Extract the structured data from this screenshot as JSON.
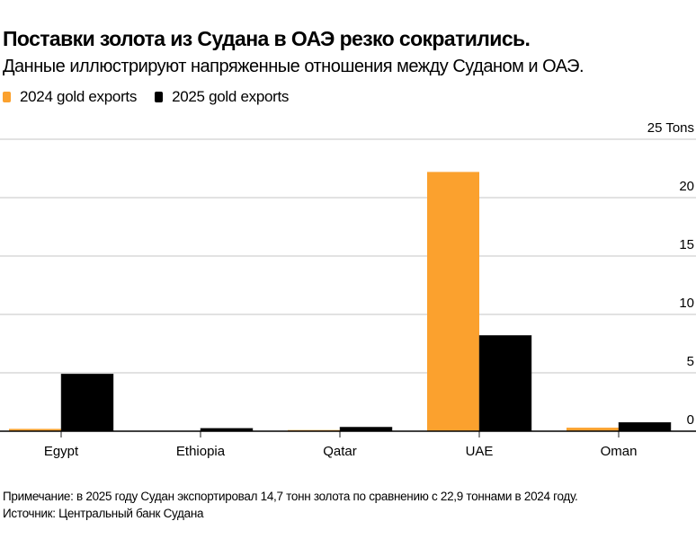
{
  "chart_data": {
    "type": "bar",
    "title": "Поставки золота из Судана в ОАЭ резко сократились.",
    "subtitle": "Данные иллюстрируют напряженные отношения между Суданом и ОАЭ.",
    "categories": [
      "Egypt",
      "Ethiopia",
      "Qatar",
      "UAE",
      "Oman"
    ],
    "series": [
      {
        "name": "2024 gold exports",
        "color": "#FBA12E",
        "values": [
          0.2,
          0.0,
          0.1,
          22.2,
          0.3
        ]
      },
      {
        "name": "2025 gold exports",
        "color": "#000000",
        "values": [
          4.9,
          0.25,
          0.35,
          8.2,
          0.75
        ]
      }
    ],
    "yticks": [
      0,
      5,
      10,
      15,
      20,
      25
    ],
    "ytick_labels": [
      "0",
      "5",
      "10",
      "15",
      "20",
      "25 Tons"
    ],
    "ylim": [
      0,
      25
    ],
    "ylabel": "Tons",
    "xlabel": "",
    "grid": true,
    "legend": "top-left"
  },
  "footer": {
    "note": "Примечание: в 2025 году Судан экспортировал 14,7 тонн золота по сравнению с 22,9 тоннами в 2024 году.",
    "source": "Источник: Центральный банк Судана"
  }
}
